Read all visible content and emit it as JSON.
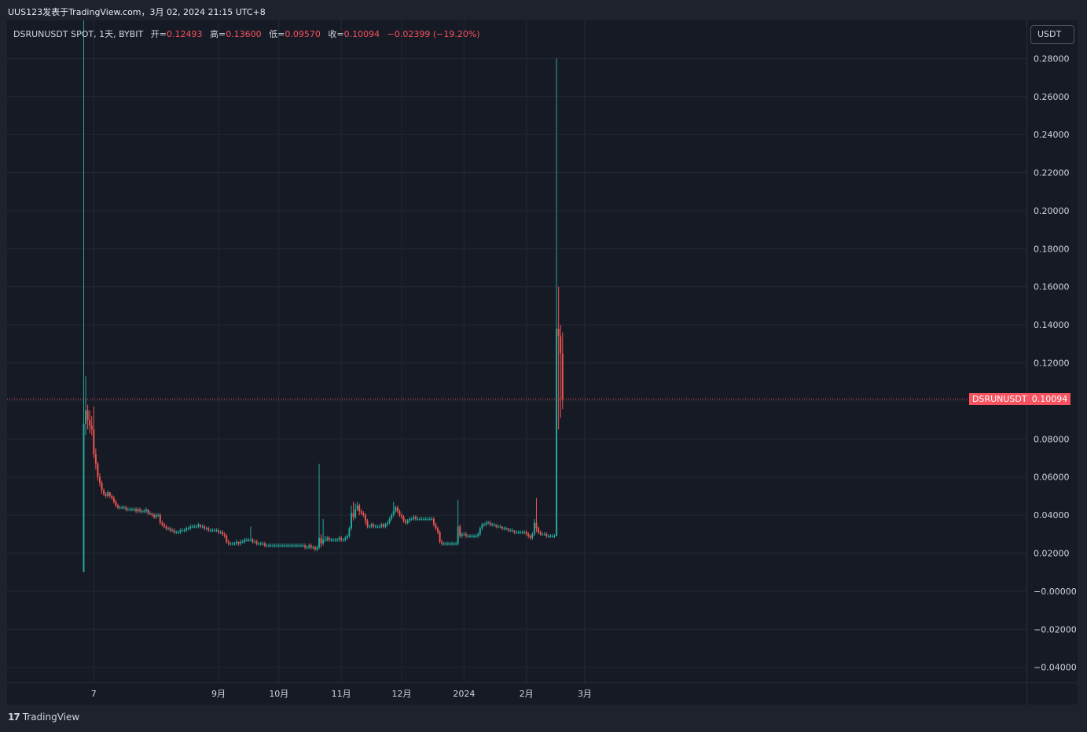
{
  "header": {
    "publish_line": "UUS123发表于TradingView.com，3月 02, 2024 21:15 UTC+8"
  },
  "legend": {
    "symbol": "DSRUNUSDT SPOT, 1天, BYBIT",
    "open_label": "开=",
    "open_value": "0.12493",
    "high_label": "高=",
    "high_value": "0.13600",
    "low_label": "低=",
    "low_value": "0.09570",
    "close_label": "收=",
    "close_value": "0.10094",
    "change": "−0.02399 (−19.20%)"
  },
  "currency_button": "USDT",
  "last_price": {
    "symbol": "DSRUNUSDT",
    "value": "0.10094"
  },
  "footer": {
    "logo": "17",
    "brand": "TradingView"
  },
  "colors": {
    "up": "#26a69a",
    "down": "#ef5350",
    "background": "#161a25",
    "grid": "#242833",
    "price_line": "#f7525f"
  },
  "chart_data": {
    "type": "candlestick",
    "title": "DSRUNUSDT SPOT, 1天, BYBIT",
    "ylim": [
      -0.048,
      0.3
    ],
    "y_ticks": [
      "0.28000",
      "0.26000",
      "0.24000",
      "0.22000",
      "0.20000",
      "0.18000",
      "0.16000",
      "0.14000",
      "0.12000",
      "0.10000",
      "0.08000",
      "0.06000",
      "0.04000",
      "0.02000",
      "−0.00000",
      "−0.02000",
      "−0.04000"
    ],
    "x_ticks": [
      {
        "label": "7",
        "date": "2023-07-01"
      },
      {
        "label": "9月",
        "date": "2023-09-01"
      },
      {
        "label": "10月",
        "date": "2023-10-01"
      },
      {
        "label": "11月",
        "date": "2023-11-01"
      },
      {
        "label": "12月",
        "date": "2023-12-01"
      },
      {
        "label": "2024",
        "date": "2024-01-01"
      },
      {
        "label": "2月",
        "date": "2024-02-01"
      },
      {
        "label": "3月",
        "date": "2024-03-01"
      }
    ],
    "last_price": 0.10094,
    "grid": true,
    "first_date": "2023-06-26",
    "candles": [
      [
        0.01,
        0.088,
        0.3,
        0.01
      ],
      [
        0.088,
        0.095,
        0.113,
        0.082
      ],
      [
        0.095,
        0.09,
        0.098,
        0.085
      ],
      [
        0.09,
        0.087,
        0.095,
        0.083
      ],
      [
        0.087,
        0.085,
        0.092,
        0.082
      ],
      [
        0.085,
        0.072,
        0.097,
        0.07
      ],
      [
        0.072,
        0.067,
        0.075,
        0.064
      ],
      [
        0.067,
        0.06,
        0.068,
        0.058
      ],
      [
        0.06,
        0.057,
        0.062,
        0.055
      ],
      [
        0.057,
        0.053,
        0.058,
        0.051
      ],
      [
        0.053,
        0.051,
        0.054,
        0.05
      ],
      [
        0.051,
        0.05,
        0.052,
        0.049
      ],
      [
        0.05,
        0.052,
        0.053,
        0.049
      ],
      [
        0.052,
        0.05,
        0.052,
        0.049
      ],
      [
        0.05,
        0.049,
        0.051,
        0.048
      ],
      [
        0.049,
        0.047,
        0.05,
        0.046
      ],
      [
        0.047,
        0.045,
        0.048,
        0.044
      ],
      [
        0.045,
        0.044,
        0.046,
        0.043
      ],
      [
        0.044,
        0.044,
        0.045,
        0.043
      ],
      [
        0.044,
        0.044,
        0.045,
        0.043
      ],
      [
        0.044,
        0.044,
        0.045,
        0.043
      ],
      [
        0.044,
        0.043,
        0.045,
        0.042
      ],
      [
        0.043,
        0.043,
        0.044,
        0.042
      ],
      [
        0.043,
        0.043,
        0.044,
        0.042
      ],
      [
        0.043,
        0.043,
        0.044,
        0.042
      ],
      [
        0.043,
        0.043,
        0.044,
        0.042
      ],
      [
        0.043,
        0.042,
        0.044,
        0.041
      ],
      [
        0.042,
        0.043,
        0.044,
        0.041
      ],
      [
        0.043,
        0.042,
        0.044,
        0.041
      ],
      [
        0.042,
        0.042,
        0.043,
        0.041
      ],
      [
        0.042,
        0.042,
        0.043,
        0.041
      ],
      [
        0.042,
        0.043,
        0.044,
        0.041
      ],
      [
        0.043,
        0.041,
        0.043,
        0.04
      ],
      [
        0.041,
        0.041,
        0.042,
        0.04
      ],
      [
        0.041,
        0.04,
        0.041,
        0.039
      ],
      [
        0.04,
        0.039,
        0.041,
        0.038
      ],
      [
        0.039,
        0.04,
        0.041,
        0.038
      ],
      [
        0.04,
        0.04,
        0.041,
        0.039
      ],
      [
        0.04,
        0.036,
        0.041,
        0.035
      ],
      [
        0.036,
        0.035,
        0.037,
        0.034
      ],
      [
        0.035,
        0.034,
        0.036,
        0.033
      ],
      [
        0.034,
        0.033,
        0.035,
        0.032
      ],
      [
        0.033,
        0.033,
        0.034,
        0.032
      ],
      [
        0.033,
        0.032,
        0.034,
        0.031
      ],
      [
        0.032,
        0.032,
        0.033,
        0.031
      ],
      [
        0.032,
        0.031,
        0.033,
        0.03
      ],
      [
        0.031,
        0.031,
        0.032,
        0.03
      ],
      [
        0.031,
        0.031,
        0.032,
        0.03
      ],
      [
        0.031,
        0.032,
        0.033,
        0.03
      ],
      [
        0.032,
        0.032,
        0.033,
        0.031
      ],
      [
        0.032,
        0.032,
        0.033,
        0.031
      ],
      [
        0.032,
        0.033,
        0.034,
        0.031
      ],
      [
        0.033,
        0.033,
        0.034,
        0.032
      ],
      [
        0.033,
        0.034,
        0.035,
        0.032
      ],
      [
        0.034,
        0.034,
        0.035,
        0.033
      ],
      [
        0.034,
        0.034,
        0.035,
        0.033
      ],
      [
        0.034,
        0.034,
        0.035,
        0.033
      ],
      [
        0.034,
        0.035,
        0.036,
        0.033
      ],
      [
        0.035,
        0.034,
        0.035,
        0.033
      ],
      [
        0.034,
        0.034,
        0.035,
        0.033
      ],
      [
        0.034,
        0.033,
        0.035,
        0.032
      ],
      [
        0.033,
        0.033,
        0.034,
        0.032
      ],
      [
        0.033,
        0.032,
        0.034,
        0.031
      ],
      [
        0.032,
        0.032,
        0.033,
        0.031
      ],
      [
        0.032,
        0.032,
        0.033,
        0.031
      ],
      [
        0.032,
        0.032,
        0.033,
        0.031
      ],
      [
        0.032,
        0.032,
        0.033,
        0.031
      ],
      [
        0.032,
        0.031,
        0.033,
        0.03
      ],
      [
        0.031,
        0.031,
        0.032,
        0.03
      ],
      [
        0.031,
        0.03,
        0.032,
        0.029
      ],
      [
        0.03,
        0.029,
        0.031,
        0.028
      ],
      [
        0.029,
        0.026,
        0.03,
        0.025
      ],
      [
        0.026,
        0.025,
        0.027,
        0.024
      ],
      [
        0.025,
        0.025,
        0.026,
        0.024
      ],
      [
        0.025,
        0.025,
        0.026,
        0.024
      ],
      [
        0.025,
        0.025,
        0.026,
        0.024
      ],
      [
        0.025,
        0.026,
        0.027,
        0.024
      ],
      [
        0.026,
        0.025,
        0.026,
        0.024
      ],
      [
        0.025,
        0.026,
        0.027,
        0.024
      ],
      [
        0.026,
        0.026,
        0.027,
        0.025
      ],
      [
        0.026,
        0.027,
        0.028,
        0.025
      ],
      [
        0.027,
        0.027,
        0.028,
        0.026
      ],
      [
        0.027,
        0.027,
        0.028,
        0.026
      ],
      [
        0.027,
        0.027,
        0.034,
        0.026
      ],
      [
        0.027,
        0.026,
        0.028,
        0.025
      ],
      [
        0.026,
        0.026,
        0.027,
        0.025
      ],
      [
        0.026,
        0.025,
        0.027,
        0.024
      ],
      [
        0.025,
        0.025,
        0.026,
        0.024
      ],
      [
        0.025,
        0.025,
        0.026,
        0.024
      ],
      [
        0.025,
        0.025,
        0.026,
        0.024
      ],
      [
        0.025,
        0.024,
        0.026,
        0.023
      ],
      [
        0.024,
        0.024,
        0.025,
        0.023
      ],
      [
        0.024,
        0.024,
        0.025,
        0.023
      ],
      [
        0.024,
        0.024,
        0.025,
        0.023
      ],
      [
        0.024,
        0.024,
        0.025,
        0.023
      ],
      [
        0.024,
        0.024,
        0.025,
        0.023
      ],
      [
        0.024,
        0.024,
        0.025,
        0.023
      ],
      [
        0.024,
        0.024,
        0.025,
        0.023
      ],
      [
        0.024,
        0.024,
        0.025,
        0.023
      ],
      [
        0.024,
        0.024,
        0.025,
        0.023
      ],
      [
        0.024,
        0.024,
        0.025,
        0.023
      ],
      [
        0.024,
        0.024,
        0.025,
        0.023
      ],
      [
        0.024,
        0.024,
        0.025,
        0.023
      ],
      [
        0.024,
        0.024,
        0.025,
        0.023
      ],
      [
        0.024,
        0.024,
        0.025,
        0.023
      ],
      [
        0.024,
        0.024,
        0.025,
        0.023
      ],
      [
        0.024,
        0.024,
        0.025,
        0.023
      ],
      [
        0.024,
        0.024,
        0.025,
        0.023
      ],
      [
        0.024,
        0.024,
        0.025,
        0.023
      ],
      [
        0.024,
        0.024,
        0.025,
        0.023
      ],
      [
        0.024,
        0.023,
        0.025,
        0.022
      ],
      [
        0.023,
        0.023,
        0.024,
        0.022
      ],
      [
        0.023,
        0.024,
        0.025,
        0.022
      ],
      [
        0.024,
        0.023,
        0.025,
        0.022
      ],
      [
        0.023,
        0.023,
        0.024,
        0.022
      ],
      [
        0.023,
        0.022,
        0.024,
        0.021
      ],
      [
        0.022,
        0.023,
        0.024,
        0.021
      ],
      [
        0.023,
        0.028,
        0.067,
        0.022
      ],
      [
        0.028,
        0.025,
        0.03,
        0.023
      ],
      [
        0.025,
        0.027,
        0.038,
        0.024
      ],
      [
        0.027,
        0.027,
        0.029,
        0.026
      ],
      [
        0.027,
        0.028,
        0.029,
        0.026
      ],
      [
        0.028,
        0.027,
        0.029,
        0.026
      ],
      [
        0.027,
        0.027,
        0.028,
        0.026
      ],
      [
        0.027,
        0.027,
        0.028,
        0.026
      ],
      [
        0.027,
        0.027,
        0.028,
        0.026
      ],
      [
        0.027,
        0.027,
        0.028,
        0.026
      ],
      [
        0.027,
        0.028,
        0.029,
        0.026
      ],
      [
        0.028,
        0.027,
        0.029,
        0.026
      ],
      [
        0.027,
        0.027,
        0.028,
        0.026
      ],
      [
        0.027,
        0.028,
        0.029,
        0.026
      ],
      [
        0.028,
        0.029,
        0.03,
        0.027
      ],
      [
        0.029,
        0.033,
        0.034,
        0.028
      ],
      [
        0.033,
        0.041,
        0.045,
        0.032
      ],
      [
        0.041,
        0.039,
        0.047,
        0.037
      ],
      [
        0.039,
        0.043,
        0.046,
        0.038
      ],
      [
        0.043,
        0.045,
        0.047,
        0.042
      ],
      [
        0.045,
        0.042,
        0.046,
        0.04
      ],
      [
        0.042,
        0.041,
        0.043,
        0.04
      ],
      [
        0.041,
        0.04,
        0.042,
        0.039
      ],
      [
        0.04,
        0.037,
        0.041,
        0.035
      ],
      [
        0.037,
        0.034,
        0.038,
        0.033
      ],
      [
        0.034,
        0.034,
        0.035,
        0.033
      ],
      [
        0.034,
        0.035,
        0.036,
        0.033
      ],
      [
        0.035,
        0.034,
        0.036,
        0.033
      ],
      [
        0.034,
        0.034,
        0.035,
        0.033
      ],
      [
        0.034,
        0.034,
        0.035,
        0.033
      ],
      [
        0.034,
        0.034,
        0.035,
        0.033
      ],
      [
        0.034,
        0.035,
        0.036,
        0.033
      ],
      [
        0.035,
        0.034,
        0.036,
        0.033
      ],
      [
        0.034,
        0.035,
        0.036,
        0.033
      ],
      [
        0.035,
        0.036,
        0.037,
        0.034
      ],
      [
        0.036,
        0.038,
        0.039,
        0.035
      ],
      [
        0.038,
        0.04,
        0.041,
        0.037
      ],
      [
        0.04,
        0.042,
        0.047,
        0.039
      ],
      [
        0.042,
        0.044,
        0.045,
        0.041
      ],
      [
        0.044,
        0.042,
        0.045,
        0.041
      ],
      [
        0.042,
        0.04,
        0.043,
        0.039
      ],
      [
        0.04,
        0.039,
        0.041,
        0.038
      ],
      [
        0.039,
        0.037,
        0.04,
        0.036
      ],
      [
        0.037,
        0.036,
        0.038,
        0.035
      ],
      [
        0.036,
        0.037,
        0.038,
        0.035
      ],
      [
        0.037,
        0.038,
        0.039,
        0.036
      ],
      [
        0.038,
        0.038,
        0.039,
        0.037
      ],
      [
        0.038,
        0.039,
        0.04,
        0.037
      ],
      [
        0.039,
        0.038,
        0.04,
        0.037
      ],
      [
        0.038,
        0.038,
        0.039,
        0.037
      ],
      [
        0.038,
        0.038,
        0.039,
        0.037
      ],
      [
        0.038,
        0.038,
        0.039,
        0.037
      ],
      [
        0.038,
        0.038,
        0.039,
        0.037
      ],
      [
        0.038,
        0.038,
        0.039,
        0.037
      ],
      [
        0.038,
        0.038,
        0.039,
        0.037
      ],
      [
        0.038,
        0.038,
        0.039,
        0.037
      ],
      [
        0.038,
        0.038,
        0.039,
        0.037
      ],
      [
        0.038,
        0.035,
        0.039,
        0.034
      ],
      [
        0.035,
        0.033,
        0.036,
        0.032
      ],
      [
        0.033,
        0.031,
        0.034,
        0.03
      ],
      [
        0.031,
        0.026,
        0.032,
        0.025
      ],
      [
        0.026,
        0.025,
        0.027,
        0.024
      ],
      [
        0.025,
        0.025,
        0.026,
        0.024
      ],
      [
        0.025,
        0.025,
        0.026,
        0.024
      ],
      [
        0.025,
        0.025,
        0.026,
        0.024
      ],
      [
        0.025,
        0.025,
        0.026,
        0.024
      ],
      [
        0.025,
        0.025,
        0.026,
        0.024
      ],
      [
        0.025,
        0.025,
        0.026,
        0.024
      ],
      [
        0.025,
        0.025,
        0.026,
        0.024
      ],
      [
        0.025,
        0.034,
        0.048,
        0.024
      ],
      [
        0.034,
        0.029,
        0.035,
        0.028
      ],
      [
        0.029,
        0.03,
        0.031,
        0.028
      ],
      [
        0.03,
        0.03,
        0.031,
        0.029
      ],
      [
        0.03,
        0.029,
        0.031,
        0.028
      ],
      [
        0.029,
        0.029,
        0.03,
        0.028
      ],
      [
        0.029,
        0.029,
        0.03,
        0.028
      ],
      [
        0.029,
        0.029,
        0.03,
        0.028
      ],
      [
        0.029,
        0.029,
        0.03,
        0.028
      ],
      [
        0.029,
        0.029,
        0.03,
        0.028
      ],
      [
        0.029,
        0.03,
        0.031,
        0.028
      ],
      [
        0.03,
        0.033,
        0.034,
        0.029
      ],
      [
        0.033,
        0.035,
        0.036,
        0.032
      ],
      [
        0.035,
        0.035,
        0.036,
        0.034
      ],
      [
        0.035,
        0.036,
        0.037,
        0.034
      ],
      [
        0.036,
        0.036,
        0.037,
        0.035
      ],
      [
        0.036,
        0.035,
        0.037,
        0.034
      ],
      [
        0.035,
        0.035,
        0.036,
        0.034
      ],
      [
        0.035,
        0.035,
        0.036,
        0.034
      ],
      [
        0.035,
        0.034,
        0.035,
        0.033
      ],
      [
        0.034,
        0.034,
        0.035,
        0.033
      ],
      [
        0.034,
        0.034,
        0.035,
        0.033
      ],
      [
        0.034,
        0.033,
        0.034,
        0.032
      ],
      [
        0.033,
        0.033,
        0.034,
        0.032
      ],
      [
        0.033,
        0.033,
        0.034,
        0.032
      ],
      [
        0.033,
        0.032,
        0.033,
        0.031
      ],
      [
        0.032,
        0.032,
        0.033,
        0.031
      ],
      [
        0.032,
        0.032,
        0.033,
        0.031
      ],
      [
        0.032,
        0.031,
        0.032,
        0.03
      ],
      [
        0.031,
        0.031,
        0.032,
        0.03
      ],
      [
        0.031,
        0.031,
        0.032,
        0.03
      ],
      [
        0.031,
        0.031,
        0.032,
        0.03
      ],
      [
        0.031,
        0.031,
        0.032,
        0.03
      ],
      [
        0.031,
        0.031,
        0.032,
        0.03
      ],
      [
        0.031,
        0.03,
        0.032,
        0.029
      ],
      [
        0.03,
        0.029,
        0.031,
        0.028
      ],
      [
        0.029,
        0.028,
        0.03,
        0.027
      ],
      [
        0.028,
        0.03,
        0.031,
        0.027
      ],
      [
        0.03,
        0.036,
        0.038,
        0.029
      ],
      [
        0.036,
        0.033,
        0.049,
        0.031
      ],
      [
        0.033,
        0.031,
        0.034,
        0.03
      ],
      [
        0.031,
        0.03,
        0.032,
        0.029
      ],
      [
        0.03,
        0.03,
        0.031,
        0.029
      ],
      [
        0.03,
        0.03,
        0.031,
        0.029
      ],
      [
        0.03,
        0.029,
        0.031,
        0.028
      ],
      [
        0.029,
        0.029,
        0.03,
        0.028
      ],
      [
        0.029,
        0.029,
        0.03,
        0.028
      ],
      [
        0.029,
        0.029,
        0.03,
        0.028
      ],
      [
        0.029,
        0.029,
        0.03,
        0.028
      ],
      [
        0.029,
        0.138,
        0.28,
        0.029
      ],
      [
        0.138,
        0.134,
        0.16,
        0.085
      ],
      [
        0.134,
        0.125,
        0.14,
        0.091
      ],
      [
        0.12493,
        0.10094,
        0.136,
        0.0957
      ]
    ]
  }
}
